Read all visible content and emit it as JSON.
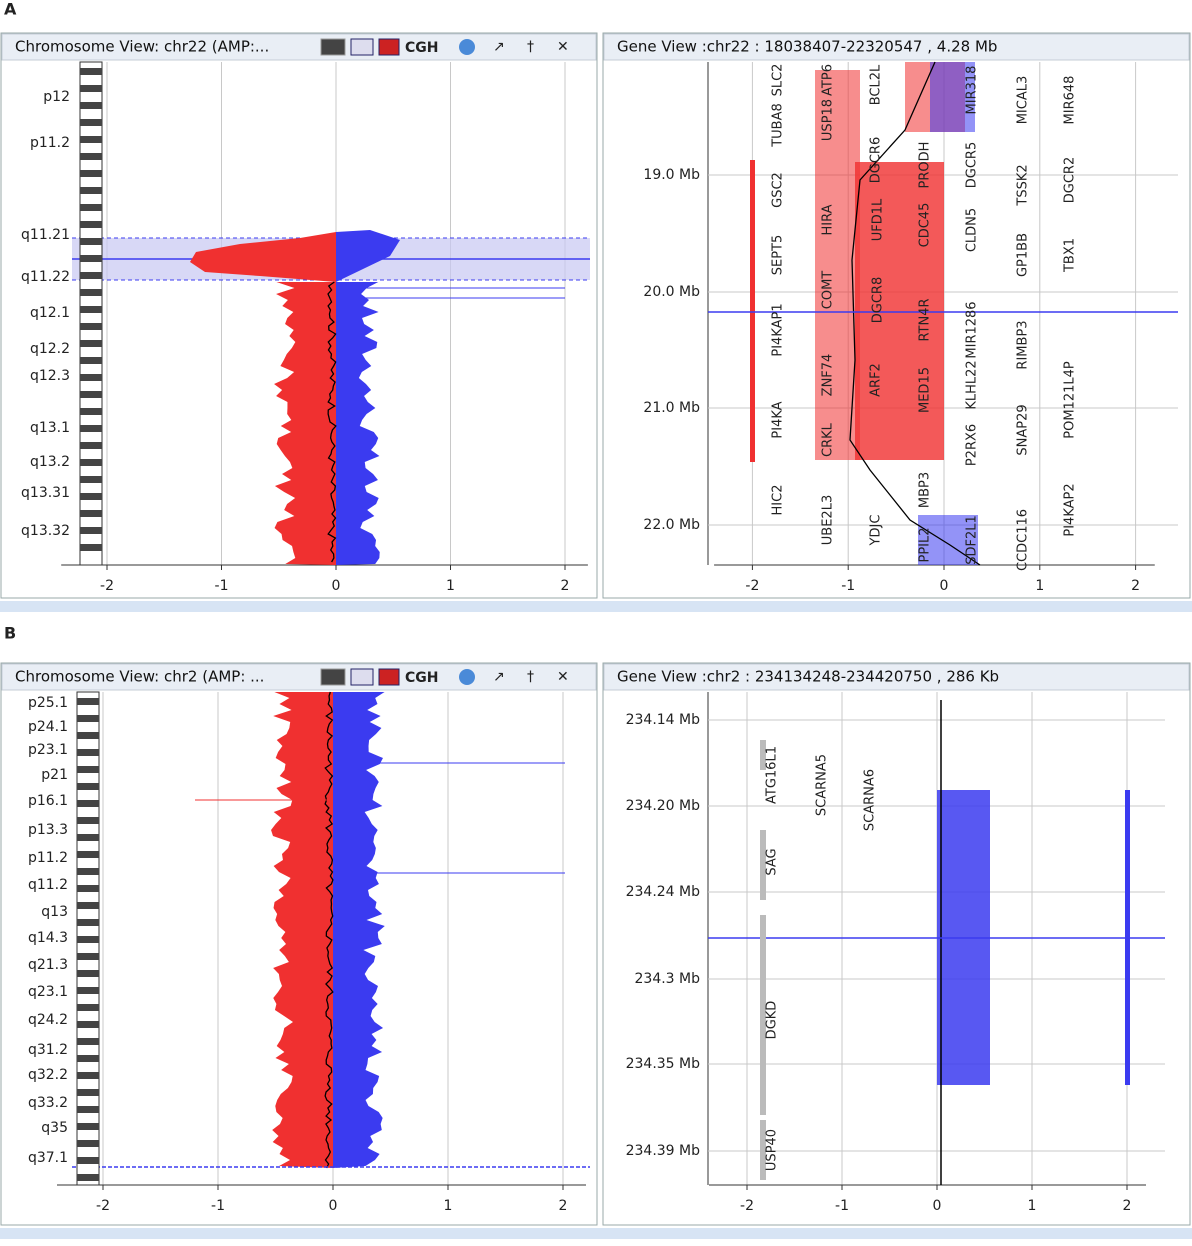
{
  "panel_a": {
    "label": "A",
    "chromosome_view": {
      "title": "Chromosome View: chr22 (AMP:...",
      "toolbar_text": "CGH",
      "bands": [
        "p12",
        "p11.2",
        "q11.21",
        "q11.22",
        "q12.1",
        "q12.2",
        "q12.3",
        "q13.1",
        "q13.2",
        "q13.31",
        "q13.32"
      ],
      "xticks": [
        -2,
        -1,
        0,
        1,
        2
      ]
    },
    "gene_view": {
      "title": "Gene View :chr22 : 18038407-22320547 , 4.28 Mb",
      "yticks": [
        "19.0 Mb",
        "20.0 Mb",
        "21.0 Mb",
        "22.0 Mb"
      ],
      "xticks": [
        -2,
        -1,
        0,
        1,
        2
      ],
      "genes": [
        "TUBA8",
        "SLC2",
        "GSC2",
        "SEPT5",
        "PI4KAP1",
        "PI4KA",
        "HIC2",
        "USP18",
        "ATP6",
        "HIRA",
        "COMT",
        "ZNF74",
        "CRKL",
        "UBE2L3",
        "BCL2L",
        "DGCR6",
        "ARF2",
        "YDJC",
        "PRODH",
        "UFD1L",
        "DGCR8",
        "RTN4R",
        "MED15",
        "MBP3",
        "PPIL2",
        "MIR318",
        "DGCR5",
        "CDC45",
        "MIR1286",
        "KLHL22",
        "P2RX6",
        "SDF2L1",
        "CLDN5",
        "MICAL3",
        "TSSK2",
        "GP1BB",
        "RIMBP3",
        "SNAP29",
        "CCDC116",
        "MIR648",
        "DGCR2",
        "TBX1",
        "POM121L4P",
        "PI4KAP2"
      ]
    }
  },
  "panel_b": {
    "label": "B",
    "chromosome_view": {
      "title": "Chromosome View: chr2 (AMP: ...",
      "toolbar_text": "CGH",
      "bands": [
        "p25.1",
        "p24.1",
        "p23.1",
        "p21",
        "p16.1",
        "p13.3",
        "p11.2",
        "q11.2",
        "q13",
        "q14.3",
        "q21.3",
        "q23.1",
        "q24.2",
        "q31.2",
        "q32.2",
        "q33.2",
        "q35",
        "q37.1"
      ],
      "xticks": [
        -2,
        -1,
        0,
        1,
        2
      ]
    },
    "gene_view": {
      "title": "Gene View :chr2 : 234134248-234420750 , 286 Kb",
      "yticks": [
        "234.14 Mb",
        "234.20 Mb",
        "234.24 Mb",
        "234.3 Mb",
        "234.35 Mb",
        "234.39 Mb"
      ],
      "xticks": [
        -2,
        -1,
        0,
        1,
        2
      ],
      "genes": [
        "ATG16L1",
        "SCARNA5",
        "SCARNA6",
        "SAG",
        "DGKD",
        "USP40"
      ]
    }
  }
}
